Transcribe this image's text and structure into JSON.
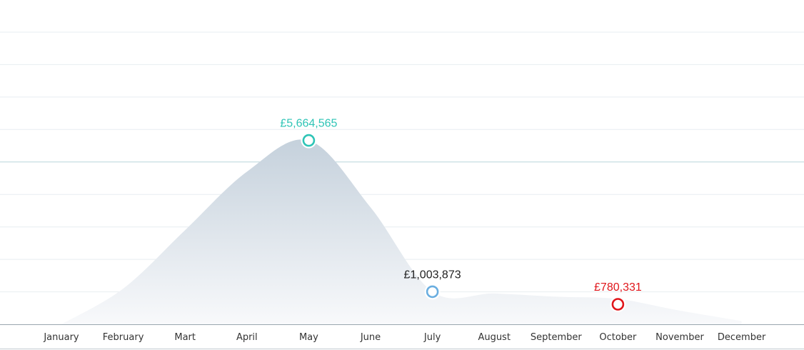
{
  "chart_data": {
    "type": "area",
    "categories": [
      "January",
      "February",
      "Mart",
      "April",
      "May",
      "June",
      "July",
      "August",
      "September",
      "October",
      "November",
      "December"
    ],
    "series": [
      {
        "values": [
          0,
          1100000,
          2900000,
          4700000,
          5664565,
          3600000,
          1003873,
          950000,
          850000,
          780331,
          420000,
          100000
        ]
      }
    ],
    "annotations": [
      {
        "category": "May",
        "value": 5664565,
        "label": "£5,664,565",
        "color": "#2ec4b6"
      },
      {
        "category": "July",
        "value": 1003873,
        "label": "£1,003,873",
        "color": "#222222",
        "marker_color": "#6aaee0"
      },
      {
        "category": "October",
        "value": 780331,
        "label": "£780,331",
        "color": "#e0161b",
        "marker_on_baseline": true
      }
    ],
    "ylim": [
      0,
      9000000
    ],
    "grid": true,
    "legend": "none",
    "title": "",
    "xlabel": "",
    "ylabel": "",
    "colors": {
      "area_top": "#c5d1dc",
      "area_bottom": "#f8f9fb",
      "grid": "#e7eef1",
      "grid_accent": "#b8d6dc",
      "axis": "#9aa6ae",
      "month_text": "#333333"
    }
  }
}
